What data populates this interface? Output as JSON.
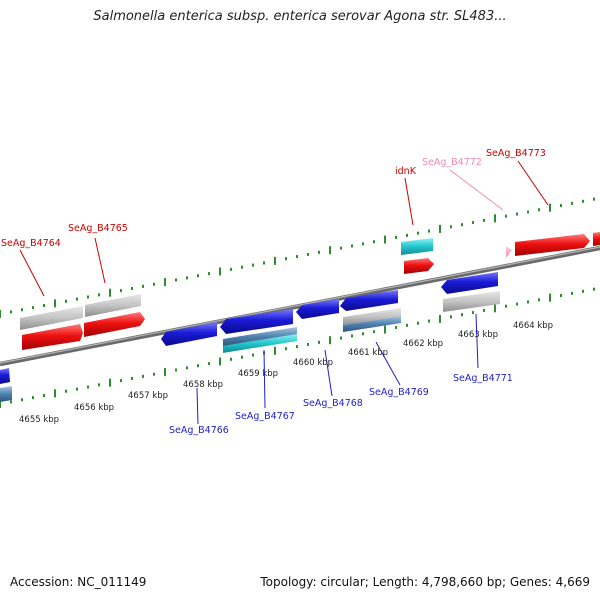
{
  "title": "Salmonella enterica subsp. enterica serovar Agona str. SL483...",
  "footer": {
    "accession": "Accession: NC_011149",
    "summary": "Topology: circular; Length: 4,798,660 bp; Genes: 4,669"
  },
  "colors": {
    "forward_gene": "#ee1111",
    "reverse_gene": "#1a1ad6",
    "forward_label": "#cc0000",
    "reverse_label": "#1f1fcc",
    "pseudo_label": "#f08cb0",
    "grey_feature": "#bdbdbd",
    "cyan_feature": "#22c6cc",
    "tick": "#2e8b2e",
    "backbone": "#808080"
  },
  "kbp_labels": [
    "4655 kbp",
    "4656 kbp",
    "4657 kbp",
    "4658 kbp",
    "4659 kbp",
    "4660 kbp",
    "4661 kbp",
    "4662 kbp",
    "4663 kbp",
    "4664 kbp"
  ],
  "forward_labels": [
    "SeAg_B4764",
    "SeAg_B4765",
    "idnK",
    "SeAg_B4772",
    "SeAg_B4773"
  ],
  "reverse_labels": [
    "SeAg_B4766",
    "SeAg_B4767",
    "SeAg_B4768",
    "SeAg_B4769",
    "SeAg_B4771"
  ]
}
